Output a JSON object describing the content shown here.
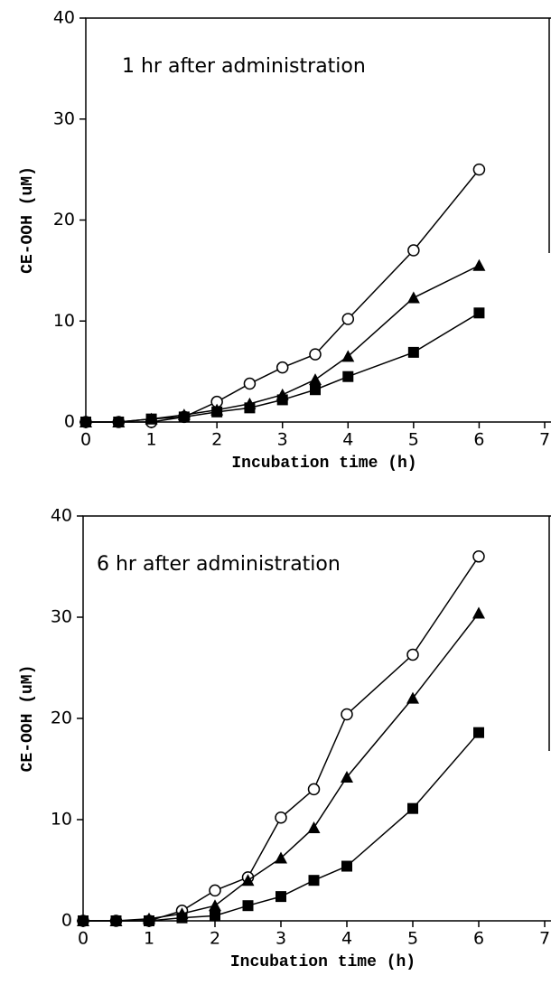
{
  "chart_data": [
    {
      "type": "line",
      "annotation": "1 hr after administration",
      "xlabel": "Incubation time (h)",
      "ylabel": "CE-OOH (uM)",
      "x": [
        0,
        0.5,
        1,
        1.5,
        2,
        2.5,
        3,
        3.5,
        4,
        5,
        6
      ],
      "series": [
        {
          "color": "#000000",
          "marker": "circle-open",
          "values": [
            0,
            0,
            0,
            0.5,
            2,
            3.8,
            5.4,
            6.7,
            10.2,
            17,
            25
          ]
        },
        {
          "color": "#000000",
          "marker": "triangle",
          "values": [
            0,
            0,
            0.3,
            0.7,
            1.2,
            1.8,
            2.7,
            4.2,
            6.5,
            12.3,
            15.5
          ]
        },
        {
          "color": "#000000",
          "marker": "square",
          "values": [
            0,
            0,
            0.3,
            0.5,
            1,
            1.4,
            2.2,
            3.2,
            4.5,
            6.9,
            10.8
          ]
        }
      ],
      "xlim": [
        0,
        7
      ],
      "xticks": [
        0,
        1,
        2,
        3,
        4,
        5,
        6,
        7
      ],
      "ylim": [
        0,
        40
      ],
      "yticks": [
        0,
        10,
        20,
        30,
        40
      ]
    },
    {
      "type": "line",
      "annotation": "6 hr after administration",
      "xlabel": "Incubation time (h)",
      "ylabel": "CE-OOH (uM)",
      "x": [
        0,
        0.5,
        1,
        1.5,
        2,
        2.5,
        3,
        3.5,
        4,
        5,
        6
      ],
      "series": [
        {
          "color": "#000000",
          "marker": "circle-open",
          "values": [
            0,
            0,
            0,
            1,
            3,
            4.3,
            10.2,
            13,
            20.4,
            26.3,
            36
          ]
        },
        {
          "color": "#000000",
          "marker": "triangle",
          "values": [
            0,
            0,
            0.2,
            0.7,
            1.5,
            4,
            6.2,
            9.2,
            14.2,
            22,
            30.4
          ]
        },
        {
          "color": "#000000",
          "marker": "square",
          "values": [
            0,
            0,
            0,
            0.3,
            0.5,
            1.5,
            2.4,
            4,
            5.4,
            11.1,
            18.6
          ]
        }
      ],
      "xlim": [
        0,
        7
      ],
      "xticks": [
        0,
        1,
        2,
        3,
        4,
        5,
        6,
        7
      ],
      "ylim": [
        0,
        40
      ],
      "yticks": [
        0,
        10,
        20,
        30,
        40
      ]
    }
  ]
}
